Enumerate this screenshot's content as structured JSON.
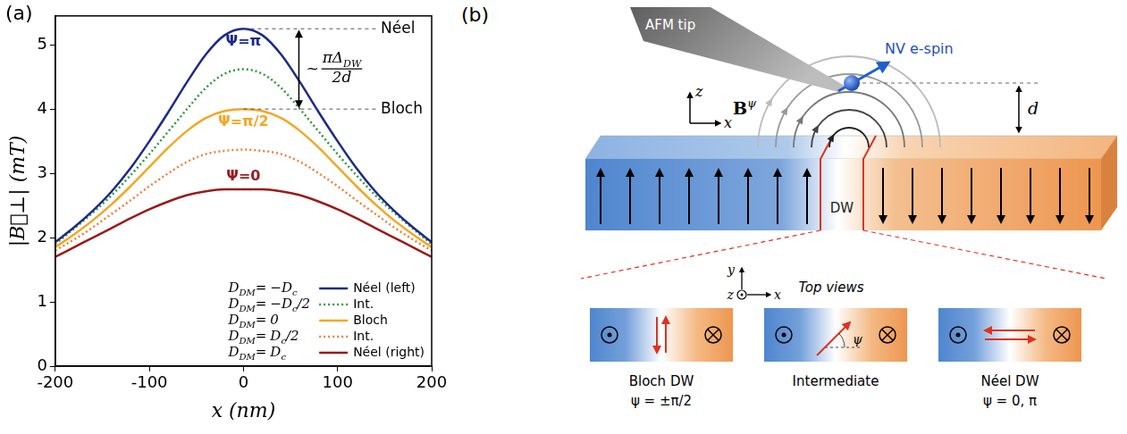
{
  "chart_data": {
    "type": "line",
    "panel_label": "(a)",
    "x_label": "x (nm)",
    "y_label": "|B⃗⊥| (mT)",
    "x": [
      -200,
      -180,
      -160,
      -140,
      -120,
      -100,
      -80,
      -60,
      -40,
      -20,
      0,
      20,
      40,
      60,
      80,
      100,
      120,
      140,
      160,
      180,
      200
    ],
    "xlim": [
      -200,
      200
    ],
    "xticks": [
      -200,
      -100,
      0,
      100,
      200
    ],
    "ylim": [
      0,
      5.45
    ],
    "yticks": [
      0,
      1,
      2,
      3,
      4,
      5
    ],
    "grid": false,
    "legend": "lower right",
    "series": [
      {
        "name": "Néel (left)",
        "color": "#1c2a8a",
        "line_style": "solid",
        "annotation": "Ψ=π",
        "dm": {
          "lhs": "D",
          "lhs_sub": "DM",
          "relation": "=",
          "rhs": "−D",
          "rhs_sub": "c"
        },
        "values": [
          1.93,
          2.16,
          2.42,
          2.72,
          3.08,
          3.5,
          3.95,
          4.42,
          4.85,
          5.15,
          5.25,
          5.15,
          4.85,
          4.42,
          3.95,
          3.5,
          3.08,
          2.72,
          2.42,
          2.16,
          1.93
        ]
      },
      {
        "name": "Int.",
        "color": "#2e9a3a",
        "line_style": "dotted",
        "dm": {
          "lhs": "D",
          "lhs_sub": "DM",
          "relation": "=",
          "rhs": "−D",
          "rhs_sub": "c",
          "rhs_tail": "/2"
        },
        "values": [
          1.9,
          2.14,
          2.39,
          2.66,
          2.97,
          3.3,
          3.65,
          4.0,
          4.33,
          4.55,
          4.62,
          4.55,
          4.33,
          4.0,
          3.65,
          3.3,
          2.97,
          2.66,
          2.39,
          2.14,
          1.9
        ]
      },
      {
        "name": "Bloch",
        "color": "#f5a623",
        "line_style": "solid",
        "annotation": "Ψ=π/2",
        "dm": {
          "lhs": "D",
          "lhs_sub": "DM",
          "relation": "=",
          "rhs": "0"
        },
        "values": [
          1.85,
          2.05,
          2.27,
          2.52,
          2.8,
          3.1,
          3.4,
          3.66,
          3.86,
          3.97,
          4.0,
          3.97,
          3.86,
          3.66,
          3.4,
          3.1,
          2.8,
          2.52,
          2.27,
          2.05,
          1.85
        ]
      },
      {
        "name": "Int.",
        "color": "#ee7f3a",
        "line_style": "dotted",
        "dm": {
          "lhs": "D",
          "lhs_sub": "DM",
          "relation": "=",
          "rhs": "D",
          "rhs_sub": "c",
          "rhs_tail": "/2"
        },
        "values": [
          1.8,
          1.97,
          2.16,
          2.37,
          2.58,
          2.8,
          3.0,
          3.18,
          3.3,
          3.35,
          3.37,
          3.35,
          3.3,
          3.18,
          3.0,
          2.8,
          2.58,
          2.37,
          2.16,
          1.97,
          1.8
        ]
      },
      {
        "name": "Néel (right)",
        "color": "#9a1b1b",
        "line_style": "solid",
        "annotation": "Ψ=0",
        "dm": {
          "lhs": "D",
          "lhs_sub": "DM",
          "relation": "=",
          "rhs": "D",
          "rhs_sub": "c"
        },
        "values": [
          1.7,
          1.85,
          2.0,
          2.15,
          2.3,
          2.44,
          2.56,
          2.66,
          2.72,
          2.75,
          2.75,
          2.75,
          2.72,
          2.66,
          2.56,
          2.44,
          2.3,
          2.15,
          2.0,
          1.85,
          1.7
        ]
      }
    ],
    "bracket": {
      "from": "Bloch",
      "to": "Néel (left)",
      "from_label": "Bloch",
      "to_label": "Néel",
      "label": {
        "prefix": "~",
        "numerator": "πΔ",
        "numerator_sub": "DW",
        "denominator": "2d"
      }
    }
  },
  "diagram": {
    "panel_label": "(b)",
    "tip_label": "AFM tip",
    "spin_label": "NV e-spin",
    "field_label": {
      "base": "B",
      "superscript": "ψ"
    },
    "side_axes": {
      "vertical": "z",
      "horizontal": "x"
    },
    "distance_label": "d",
    "wall_label": "DW",
    "top_views": {
      "title": "Top views",
      "axes": {
        "vertical": "y",
        "horizontal": "x",
        "out_of_plane": "z"
      },
      "views": [
        {
          "name": "Bloch DW",
          "angle_label": "ψ = ±π/2"
        },
        {
          "name": "Intermediate",
          "angle_symbol": "ψ"
        },
        {
          "name": "Néel DW",
          "angle_label": "ψ = 0, π"
        }
      ]
    }
  }
}
